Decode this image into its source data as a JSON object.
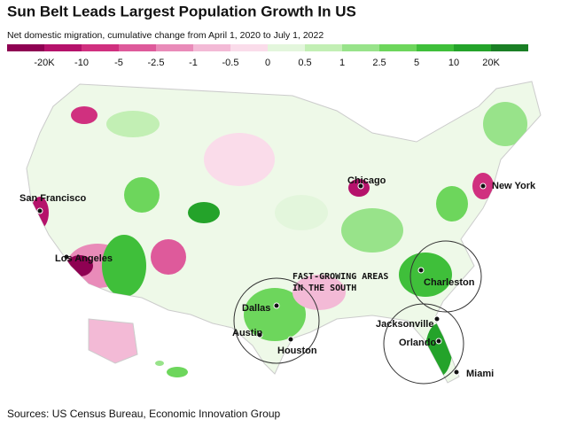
{
  "header": {
    "title": "Sun Belt Leads Largest Population Growth In US",
    "subtitle": "Net domestic migration, cumulative change from April 1, 2020 to July 1, 2022"
  },
  "legend": {
    "labels": [
      "-20K",
      "-10",
      "-5",
      "-2.5",
      "-1",
      "-0.5",
      "0",
      "0.5",
      "1",
      "2.5",
      "5",
      "10",
      "20K"
    ],
    "colors": [
      "#8e0152",
      "#b5126b",
      "#d0307f",
      "#de5a9b",
      "#e98bb9",
      "#f3bad6",
      "#fadcea",
      "#e3f6dc",
      "#c2efb4",
      "#98e38a",
      "#6dd65c",
      "#3fbf3a",
      "#24a32a",
      "#1a7f25"
    ]
  },
  "cities": [
    "San Francisco",
    "Los Angeles",
    "Chicago",
    "New York",
    "Dallas",
    "Austin",
    "Houston",
    "Charleston",
    "Jacksonville",
    "Orlando",
    "Miami"
  ],
  "annotation": [
    "FAST-GROWING AREAS",
    "IN THE SOUTH"
  ],
  "source": "Sources: US Census Bureau, Economic Innovation Group"
}
